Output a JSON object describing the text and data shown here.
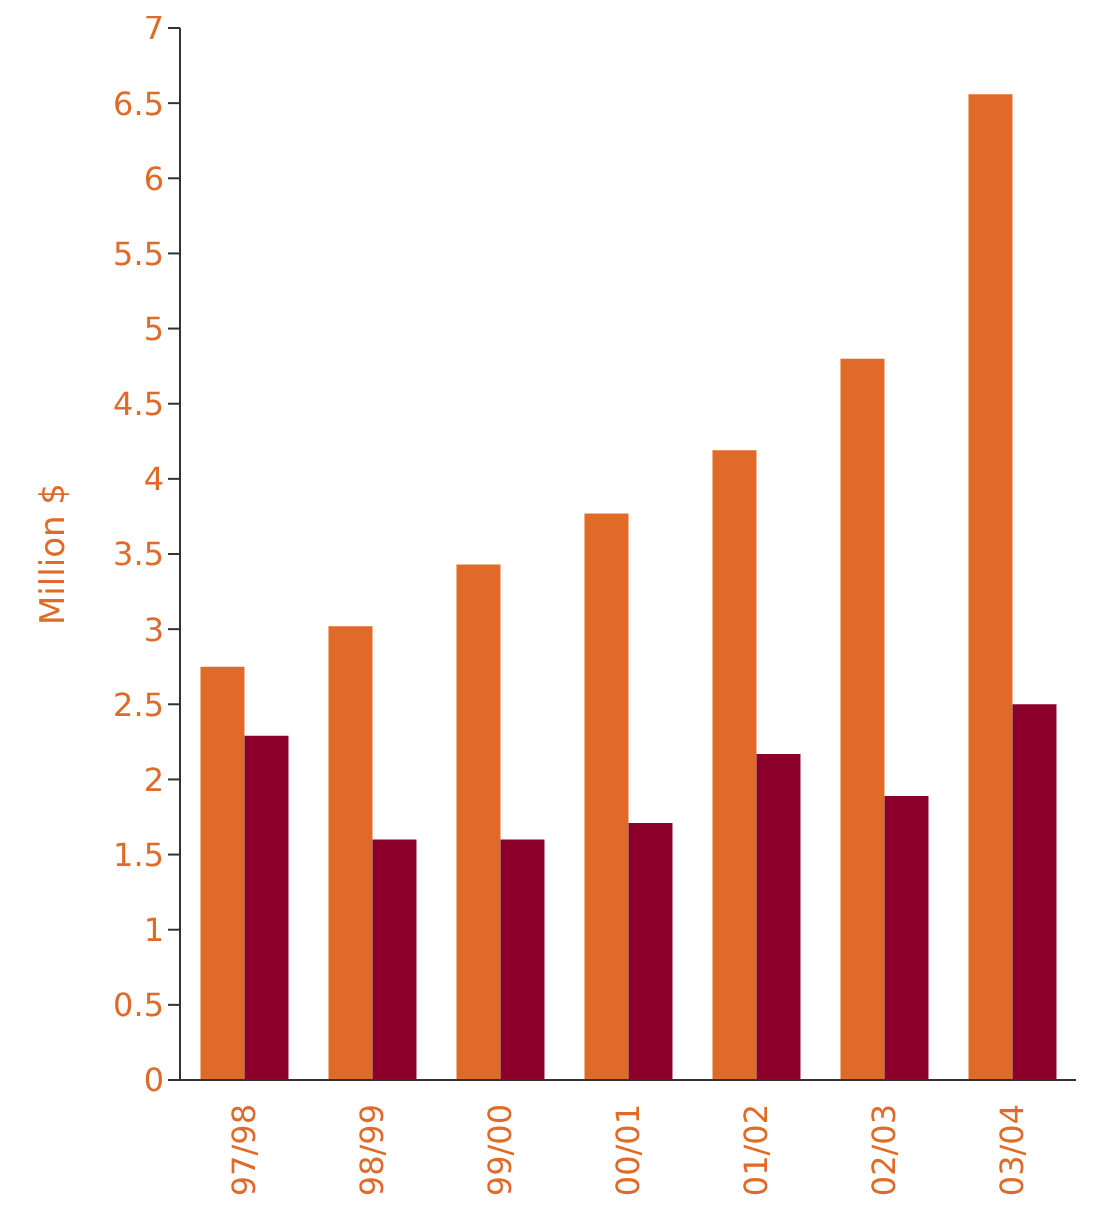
{
  "chart_data": {
    "type": "bar",
    "ylabel": "Million $",
    "categories": [
      "97/98",
      "98/99",
      "99/00",
      "00/01",
      "01/02",
      "02/03",
      "03/04"
    ],
    "series": [
      {
        "color": "#e06a27",
        "values": [
          2.75,
          3.02,
          3.43,
          3.77,
          4.19,
          4.8,
          6.56
        ]
      },
      {
        "color": "#8b002a",
        "values": [
          2.29,
          1.6,
          1.6,
          1.71,
          2.17,
          1.89,
          2.5
        ]
      }
    ],
    "ylim": [
      0,
      7
    ],
    "yticks": [
      0,
      0.5,
      1,
      1.5,
      2,
      2.5,
      3,
      3.5,
      4,
      4.5,
      5,
      5.5,
      6,
      6.5,
      7
    ],
    "grid": false,
    "legend": false
  }
}
